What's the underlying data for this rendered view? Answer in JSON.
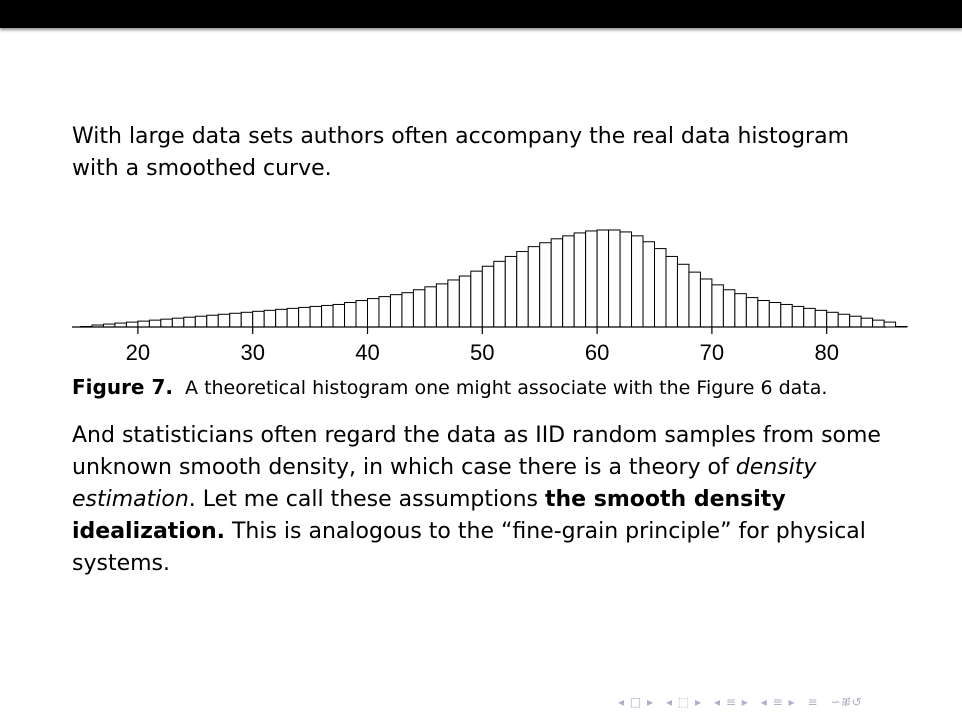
{
  "slide": {
    "intro": "With large data sets authors often accompany the real data histogram with a smoothed curve.",
    "caption_label": "Figure 7.",
    "caption_text": "A theoretical histogram one might associate with the Figure 6 data.",
    "body": {
      "p1": "And statisticians often regard the data as IID random samples from some unknown smooth density, in which case there is a theory of ",
      "em1": "density estimation",
      "p2": ". Let me call these assumptions ",
      "b1": "the smooth density idealization.",
      "p3": " This is analogous to the “fine-grain principle” for physical systems."
    }
  },
  "chart_data": {
    "type": "bar",
    "description_shape": "histogram",
    "x_start": 15,
    "bin_width": 1,
    "values": [
      0.5,
      2,
      3,
      4,
      5,
      6,
      7,
      8,
      9,
      10,
      11,
      12,
      13,
      14,
      15,
      16,
      17,
      18,
      19,
      20,
      21,
      22,
      23,
      25,
      27,
      29,
      31,
      33,
      35,
      38,
      41,
      44,
      48,
      52,
      57,
      62,
      67,
      72,
      77,
      82,
      86,
      90,
      93,
      96,
      98,
      99,
      99,
      97,
      93,
      87,
      80,
      72,
      64,
      56,
      49,
      43,
      38,
      34,
      30,
      27,
      25,
      23,
      21,
      19,
      17,
      15,
      13,
      11,
      9,
      7,
      5,
      0.5
    ],
    "xticks": [
      "20",
      "30",
      "40",
      "50",
      "60",
      "70",
      "80"
    ],
    "xlim": [
      15,
      85
    ],
    "ylim": [
      0,
      100
    ],
    "grid": false,
    "legend": "none"
  },
  "nav": {
    "color": "#b0b0c8",
    "groups": [
      "◂ □ ▸",
      "◂ ⬚ ▸",
      "◂ ≡ ▸",
      "◂ ≡ ▸",
      "≡",
      "∽ⶩ↺"
    ]
  }
}
